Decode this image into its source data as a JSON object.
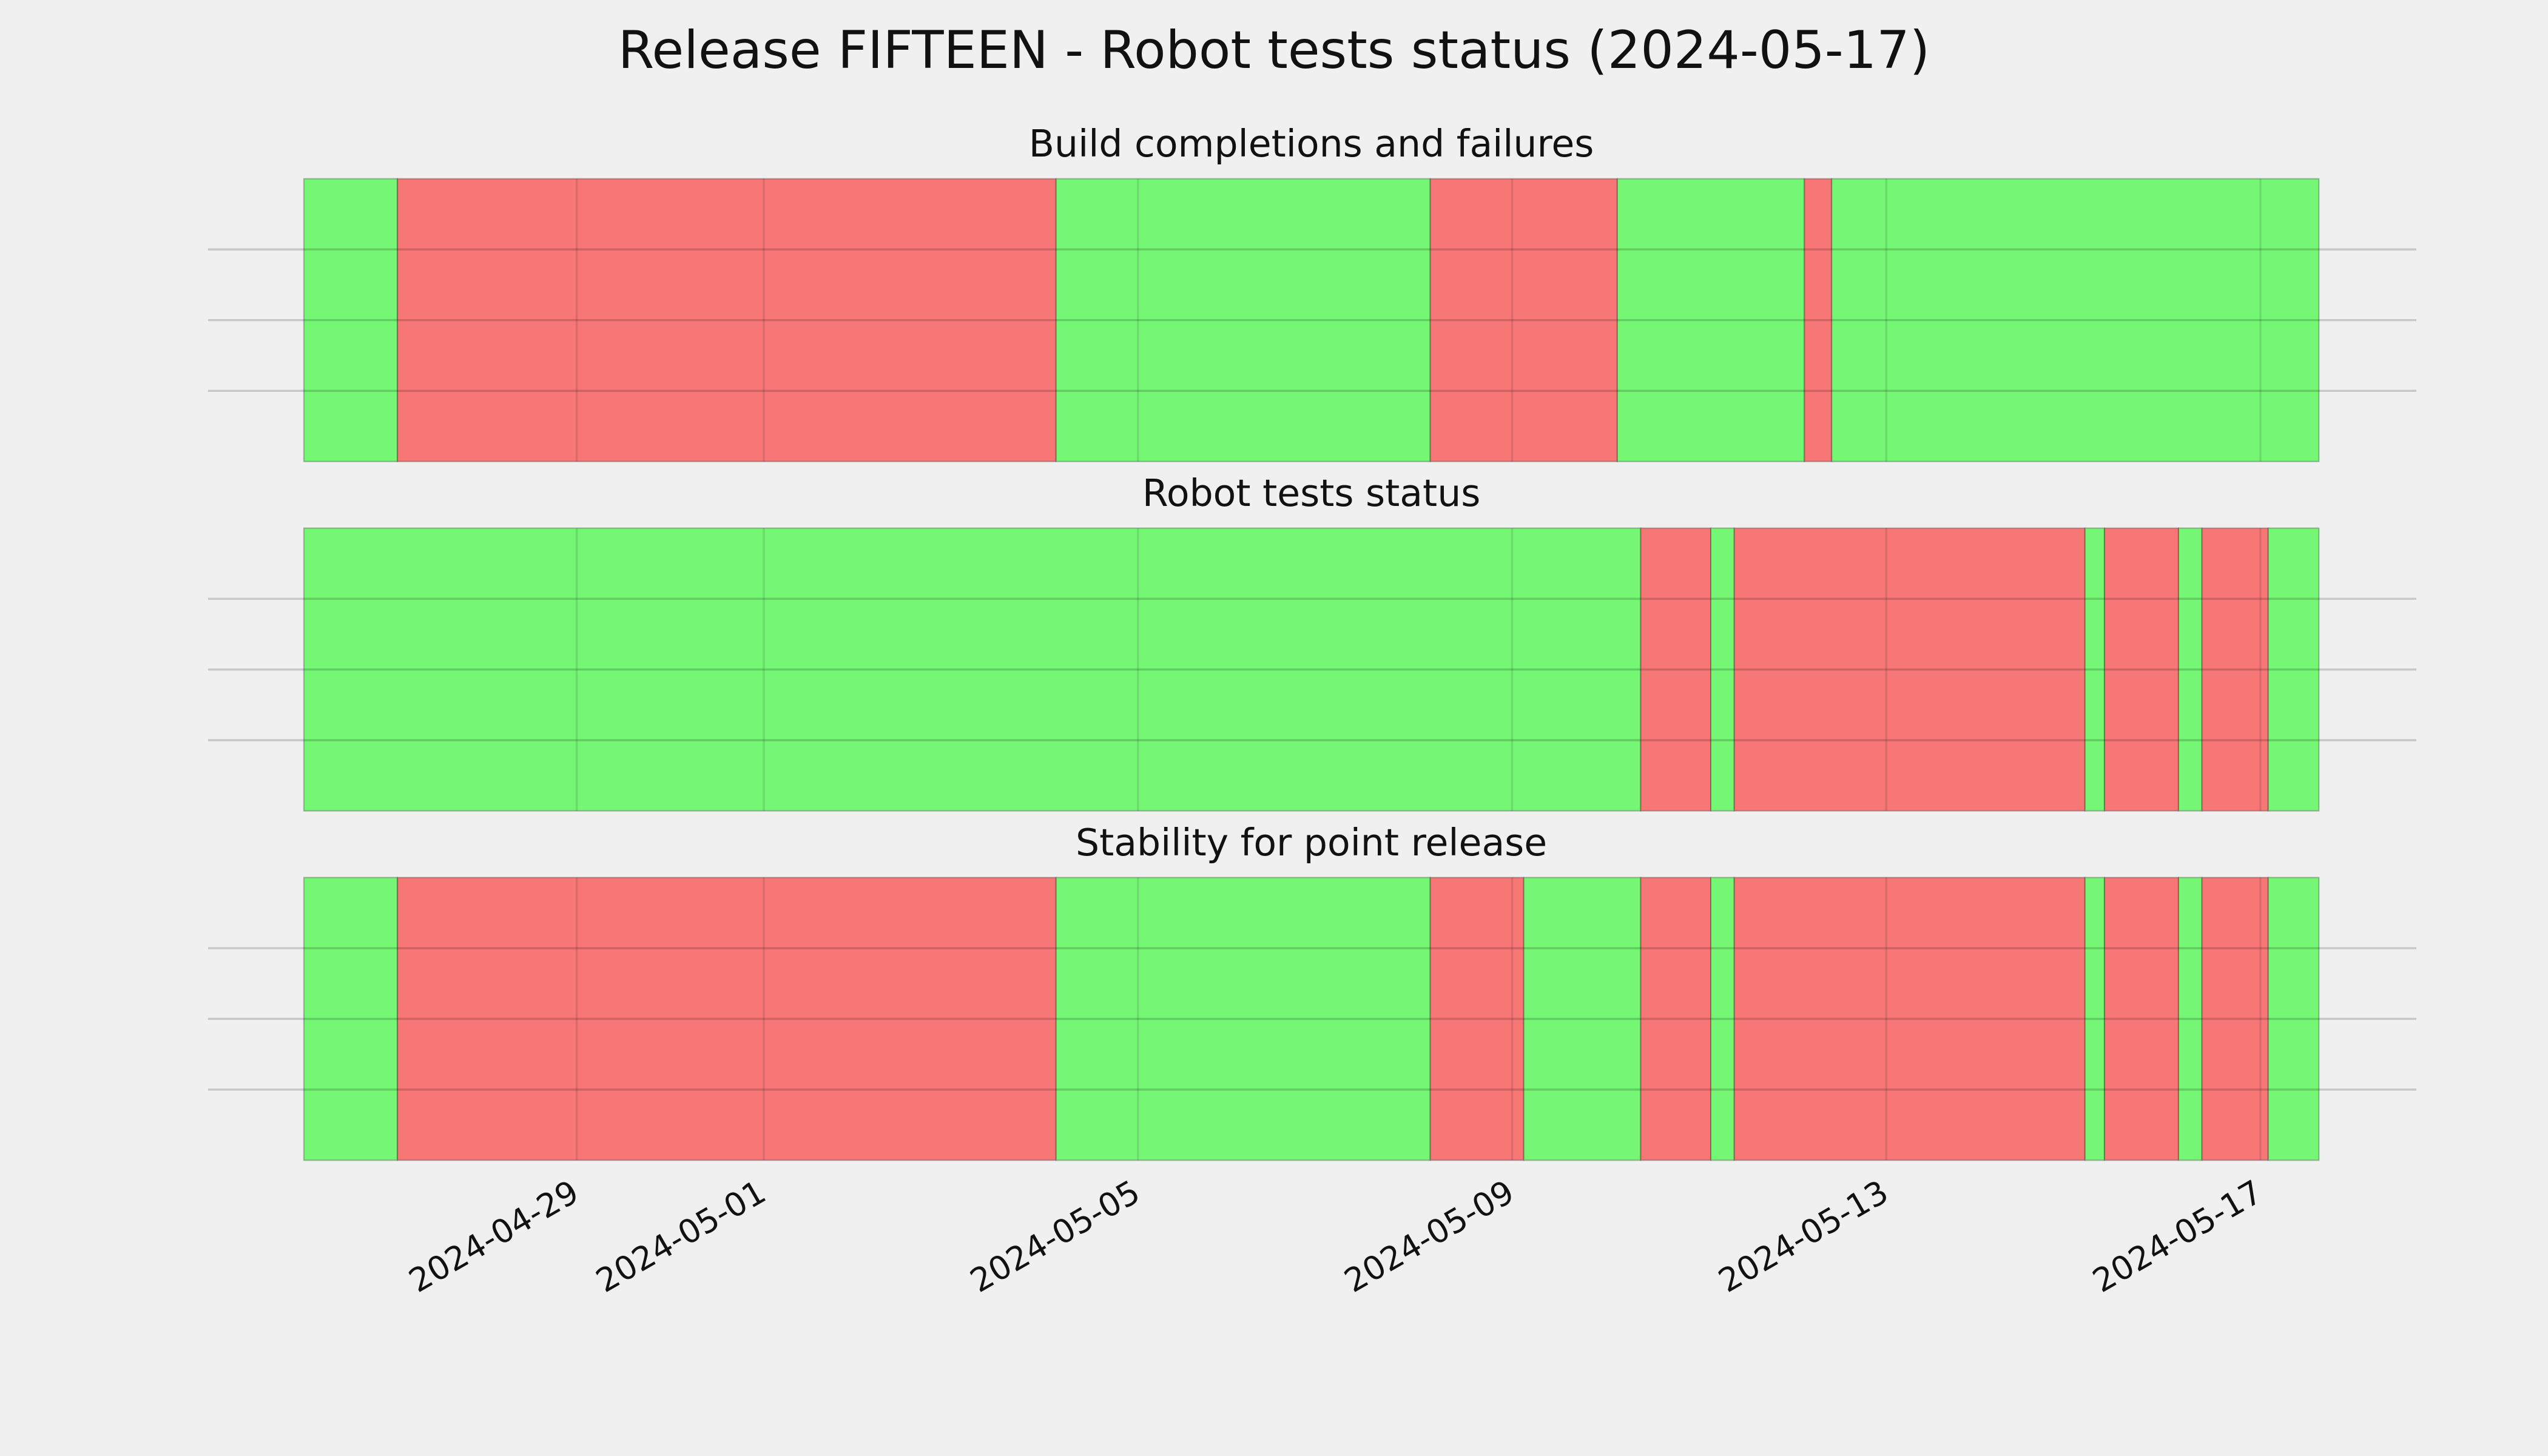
{
  "title": "Release FIFTEEN - Robot tests status (2024-05-17)",
  "chart_data": [
    {
      "type": "timeline",
      "title": "Build completions and failures",
      "spans": [
        {
          "start": "2024-04-26T02:00",
          "end": "2024-04-27T02:00",
          "color": "#75f775"
        },
        {
          "start": "2024-04-27T02:00",
          "end": "2024-05-04T03:00",
          "color": "#f77777"
        },
        {
          "start": "2024-05-04T03:00",
          "end": "2024-05-08T03:00",
          "color": "#75f775"
        },
        {
          "start": "2024-05-08T03:00",
          "end": "2024-05-10T03:00",
          "color": "#f77777"
        },
        {
          "start": "2024-05-10T03:00",
          "end": "2024-05-12T03:00",
          "color": "#75f775"
        },
        {
          "start": "2024-05-12T03:00",
          "end": "2024-05-12T10:00",
          "color": "#f77777"
        },
        {
          "start": "2024-05-12T10:00",
          "end": "2024-05-17T15:00",
          "color": "#75f775"
        }
      ]
    },
    {
      "type": "timeline",
      "title": "Robot tests status",
      "spans": [
        {
          "start": "2024-04-26T02:00",
          "end": "2024-05-10T09:00",
          "color": "#75f775"
        },
        {
          "start": "2024-05-10T09:00",
          "end": "2024-05-11T03:00",
          "color": "#f77777"
        },
        {
          "start": "2024-05-11T03:00",
          "end": "2024-05-11T09:00",
          "color": "#75f775"
        },
        {
          "start": "2024-05-11T09:00",
          "end": "2024-05-15T03:00",
          "color": "#f77777"
        },
        {
          "start": "2024-05-15T03:00",
          "end": "2024-05-15T08:00",
          "color": "#75f775"
        },
        {
          "start": "2024-05-15T08:00",
          "end": "2024-05-16T03:00",
          "color": "#f77777"
        },
        {
          "start": "2024-05-16T03:00",
          "end": "2024-05-16T09:00",
          "color": "#75f775"
        },
        {
          "start": "2024-05-16T09:00",
          "end": "2024-05-17T02:00",
          "color": "#f77777"
        },
        {
          "start": "2024-05-17T02:00",
          "end": "2024-05-17T15:00",
          "color": "#75f775"
        }
      ]
    },
    {
      "type": "timeline",
      "title": "Stability for point release",
      "xlim": [
        "2024-04-26T02:00",
        "2024-05-17T15:00"
      ],
      "xticks": [
        "2024-04-29",
        "2024-05-01",
        "2024-05-05",
        "2024-05-09",
        "2024-05-13",
        "2024-05-17"
      ],
      "spans": [
        {
          "start": "2024-04-26T02:00",
          "end": "2024-04-27T02:00",
          "color": "#75f775"
        },
        {
          "start": "2024-04-27T02:00",
          "end": "2024-05-04T03:00",
          "color": "#f77777"
        },
        {
          "start": "2024-05-04T03:00",
          "end": "2024-05-08T03:00",
          "color": "#75f775"
        },
        {
          "start": "2024-05-08T03:00",
          "end": "2024-05-09T03:00",
          "color": "#f77777"
        },
        {
          "start": "2024-05-09T03:00",
          "end": "2024-05-10T09:00",
          "color": "#75f775"
        },
        {
          "start": "2024-05-10T09:00",
          "end": "2024-05-11T03:00",
          "color": "#f77777"
        },
        {
          "start": "2024-05-11T03:00",
          "end": "2024-05-11T09:00",
          "color": "#75f775"
        },
        {
          "start": "2024-05-11T09:00",
          "end": "2024-05-15T03:00",
          "color": "#f77777"
        },
        {
          "start": "2024-05-15T03:00",
          "end": "2024-05-15T08:00",
          "color": "#75f775"
        },
        {
          "start": "2024-05-15T08:00",
          "end": "2024-05-16T03:00",
          "color": "#f77777"
        },
        {
          "start": "2024-05-16T03:00",
          "end": "2024-05-16T09:00",
          "color": "#75f775"
        },
        {
          "start": "2024-05-16T09:00",
          "end": "2024-05-17T02:00",
          "color": "#f77777"
        },
        {
          "start": "2024-05-17T02:00",
          "end": "2024-05-17T15:00",
          "color": "#75f775"
        }
      ]
    }
  ]
}
